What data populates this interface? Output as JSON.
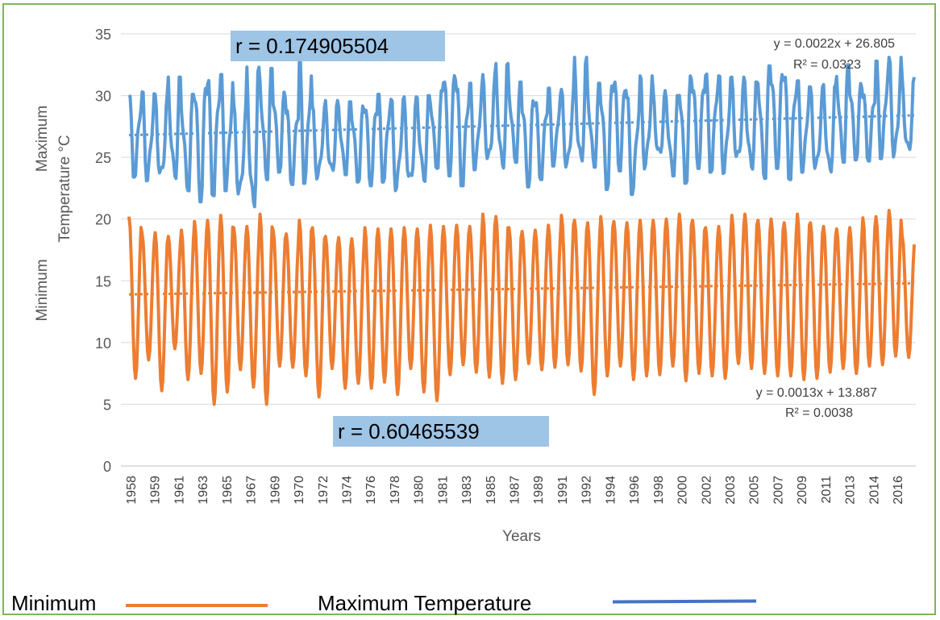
{
  "chart_data": {
    "type": "line",
    "ylim": [
      0,
      35
    ],
    "yticks": [
      "0",
      "5",
      "10",
      "15",
      "20",
      "25",
      "30",
      "35"
    ],
    "xlabel": "Years",
    "ylabel_top": "Maximum",
    "ylabel_upper": "Temperature °C",
    "ylabel_lower": "Minimum",
    "xticks": [
      "1958",
      "1959",
      "1961",
      "1963",
      "1965",
      "1967",
      "1969",
      "1970",
      "1972",
      "1974",
      "1976",
      "1978",
      "1980",
      "1981",
      "1983",
      "1985",
      "1987",
      "1989",
      "1991",
      "1992",
      "1994",
      "1996",
      "1998",
      "2000",
      "2002",
      "2003",
      "2005",
      "2007",
      "2009",
      "2011",
      "2013",
      "2014",
      "2016"
    ],
    "grid": true,
    "series": [
      {
        "name": "Maximum Temperature",
        "color": "#5b9bd5",
        "start_year": 1958,
        "end_year": 2017,
        "annual_high": [
          30.0,
          30.3,
          30.1,
          31.5,
          30.1,
          31.5,
          31.6,
          31.7,
          29.3,
          32.3,
          32.2,
          30.6,
          29.3,
          32.7,
          29.1,
          29.6,
          29.5,
          29.2,
          29.7,
          30.1,
          29.7,
          29.9,
          30.0,
          30.4,
          32.7,
          30.7,
          31.0,
          31.7,
          32.6,
          31.1,
          30.1,
          29.8,
          30.6,
          30.5,
          33.1,
          31.0,
          31.0,
          31.9,
          29.8,
          31.6,
          30.4,
          30.0,
          31.6,
          31.5,
          31.8,
          31.6,
          31.5,
          31.1,
          32.4,
          32.5,
          31.8,
          31.2,
          30.7,
          30.9,
          32.5,
          31.3,
          30.5,
          32.8,
          33.1,
          31.5
        ],
        "annual_low": [
          23.4,
          23.1,
          22.9,
          23.1,
          22.3,
          21.4,
          21.9,
          22.3,
          21.5,
          20.3,
          23.2,
          23.8,
          22.8,
          22.9,
          23.1,
          23.3,
          23.6,
          23.0,
          22.7,
          23.0,
          22.3,
          22.4,
          23.0,
          24.1,
          23.5,
          22.7,
          24.0,
          24.2,
          23.8,
          24.6,
          22.6,
          23.2,
          24.3,
          23.9,
          24.0,
          24.2,
          22.4,
          23.9,
          22.0,
          24.0,
          24.7,
          23.5,
          22.9,
          24.1,
          23.8,
          23.7,
          24.2,
          23.9,
          23.3,
          24.1,
          23.2,
          23.8,
          23.6,
          23.4,
          24.6,
          24.8,
          24.7,
          24.9,
          24.8,
          25.0
        ],
        "trendline": {
          "equation": "y = 0.0022x + 26.805",
          "r2": "R² = 0.0323",
          "start": 26.8,
          "end": 28.4
        }
      },
      {
        "name": "Minimum",
        "color": "#ed7d31",
        "start_year": 1958,
        "end_year": 2017,
        "annual_high": [
          20.2,
          18.8,
          18.9,
          18.6,
          19.1,
          19.8,
          19.9,
          20.3,
          19.3,
          19.4,
          20.4,
          19.1,
          18.8,
          19.9,
          19.3,
          18.6,
          18.5,
          18.4,
          19.3,
          19.2,
          19.2,
          19.3,
          19.2,
          19.5,
          19.4,
          19.5,
          19.4,
          20.4,
          20.2,
          19.3,
          19.0,
          19.1,
          19.5,
          20.3,
          19.9,
          19.7,
          20.2,
          19.8,
          19.7,
          19.9,
          19.9,
          20.0,
          20.4,
          19.9,
          19.3,
          19.4,
          20.3,
          20.4,
          19.9,
          20.0,
          19.7,
          20.4,
          19.7,
          19.4,
          19.2,
          19.3,
          20.1,
          20.2,
          20.7,
          18.6
        ],
        "annual_low": [
          7.1,
          8.6,
          6.1,
          9.5,
          7.0,
          7.5,
          5.0,
          6.0,
          7.8,
          6.4,
          5.0,
          8.1,
          8.0,
          7.3,
          5.6,
          7.9,
          6.3,
          6.7,
          6.3,
          6.8,
          5.8,
          7.9,
          6.0,
          5.3,
          7.4,
          8.2,
          7.6,
          7.2,
          6.7,
          7.0,
          8.3,
          7.8,
          8.0,
          8.2,
          7.7,
          5.8,
          7.3,
          8.1,
          7.0,
          7.3,
          7.4,
          8.1,
          6.9,
          7.5,
          7.3,
          7.1,
          8.3,
          7.9,
          7.5,
          7.3,
          7.3,
          7.0,
          7.1,
          7.6,
          7.9,
          7.5,
          8.1,
          8.2,
          8.9,
          8.8
        ],
        "trendline": {
          "equation": "y = 0.0013x + 13.887",
          "r2": "R² = 0.0038",
          "start": 13.9,
          "end": 14.8
        }
      }
    ]
  },
  "annotations": {
    "r_max": "r = 0.174905504",
    "r_min": "r = 0.60465539"
  },
  "legend": {
    "minimum_label": "Minimum",
    "maximum_label": "Maximum Temperature"
  }
}
